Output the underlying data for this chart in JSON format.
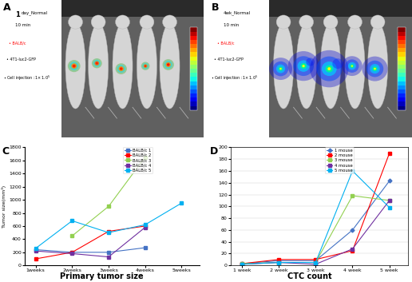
{
  "C_xlabel": [
    "1weeks",
    "2weeks",
    "3weeks",
    "4weeks",
    "5weeks"
  ],
  "C_x": [
    0,
    1,
    2,
    3,
    4
  ],
  "C_ylim": [
    0,
    1800
  ],
  "C_yticks": [
    0,
    200,
    400,
    600,
    800,
    1000,
    1200,
    1400,
    1600,
    1800
  ],
  "C_ylabel": "Tumor size(mm³)",
  "C_title": "Primary tumor size",
  "C_series": [
    {
      "label": "BALB/c 1",
      "color": "#4472C4",
      "marker": "s",
      "data": [
        240,
        200,
        200,
        270,
        null
      ]
    },
    {
      "label": "BALB/c 2",
      "color": "#FF0000",
      "marker": "s",
      "data": [
        100,
        200,
        520,
        600,
        null
      ]
    },
    {
      "label": "BALB/c 3",
      "color": "#92D050",
      "marker": "s",
      "data": [
        null,
        450,
        900,
        1650,
        null
      ]
    },
    {
      "label": "BALB/c 4",
      "color": "#7030A0",
      "marker": "s",
      "data": [
        220,
        180,
        130,
        580,
        null
      ]
    },
    {
      "label": "BALB/c 5",
      "color": "#00B0F0",
      "marker": "s",
      "data": [
        260,
        680,
        500,
        620,
        950
      ]
    }
  ],
  "D_xlabel": [
    "1 week",
    "2 week",
    "3 week",
    "4 week",
    "5 week"
  ],
  "D_x": [
    0,
    1,
    2,
    3,
    4
  ],
  "D_ylim": [
    0,
    200
  ],
  "D_yticks": [
    0,
    20,
    40,
    60,
    80,
    100,
    120,
    140,
    160,
    180,
    200
  ],
  "D_title": "CTC count",
  "D_series": [
    {
      "label": "1 mouse",
      "color": "#4472C4",
      "marker": "D",
      "data": [
        3,
        8,
        8,
        60,
        143
      ]
    },
    {
      "label": "2 mouse",
      "color": "#FF0000",
      "marker": "s",
      "data": [
        3,
        10,
        10,
        25,
        190
      ]
    },
    {
      "label": "3 mouse",
      "color": "#92D050",
      "marker": "s",
      "data": [
        3,
        5,
        5,
        118,
        110
      ]
    },
    {
      "label": "4 mouse",
      "color": "#7030A0",
      "marker": "s",
      "data": [
        2,
        5,
        2,
        28,
        110
      ]
    },
    {
      "label": "5 mouse",
      "color": "#00B0F0",
      "marker": "s",
      "data": [
        2,
        5,
        5,
        160,
        98
      ]
    }
  ],
  "panel_A_label": "A",
  "panel_B_label": "B",
  "panel_C_label": "C",
  "panel_D_label": "D",
  "img_bg": "#808080",
  "mouse_body_color": "#C8C8C8",
  "mouse_edge_color": "#A0A0A0",
  "top_bar_color": "#2a2a2a"
}
